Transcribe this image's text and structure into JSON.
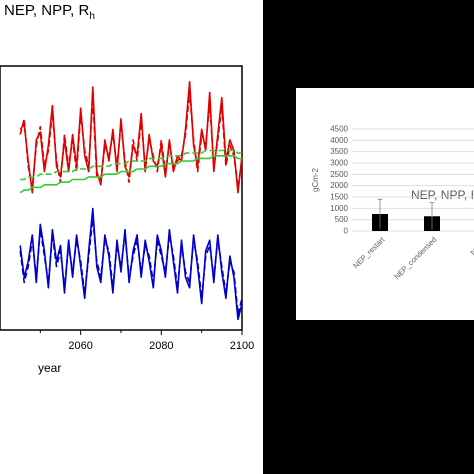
{
  "left_chart": {
    "title": "NEP, NPP, R",
    "title_sub": "h",
    "xlabel": "year",
    "x_ticks": [
      "2060",
      "2080",
      "2100"
    ]
  },
  "right_chart": {
    "title": "NEP, NPP, I",
    "ylabel": "gCm-2",
    "y_ticks": [
      "4500",
      "4000",
      "3500",
      "3000",
      "2500",
      "2000",
      "1500",
      "1000",
      "500",
      "0"
    ]
  },
  "chart_data": [
    {
      "type": "line",
      "title": "NEP, NPP, Rh",
      "xlabel": "year",
      "ylabel": "",
      "xlim": [
        2040,
        2100
      ],
      "ylim": [
        0,
        100
      ],
      "grid": false,
      "x": [
        2045,
        2046,
        2047,
        2048,
        2049,
        2050,
        2051,
        2052,
        2053,
        2054,
        2055,
        2056,
        2057,
        2058,
        2059,
        2060,
        2061,
        2062,
        2063,
        2064,
        2065,
        2066,
        2067,
        2068,
        2069,
        2070,
        2071,
        2072,
        2073,
        2074,
        2075,
        2076,
        2077,
        2078,
        2079,
        2080,
        2081,
        2082,
        2083,
        2084,
        2085,
        2086,
        2087,
        2088,
        2089,
        2090,
        2091,
        2092,
        2093,
        2094,
        2095,
        2096,
        2097,
        2098,
        2099,
        2100
      ],
      "series": [
        {
          "color": "#e00000",
          "style": "solid",
          "values": [
            76,
            78,
            64,
            52,
            72,
            75,
            60,
            70,
            85,
            62,
            58,
            72,
            60,
            74,
            62,
            84,
            66,
            60,
            92,
            60,
            55,
            72,
            64,
            76,
            60,
            80,
            62,
            58,
            70,
            66,
            82,
            60,
            74,
            64,
            62,
            70,
            58,
            72,
            60,
            66,
            64,
            76,
            94,
            70,
            62,
            76,
            68,
            90,
            60,
            74,
            88,
            64,
            72,
            68,
            52,
            66
          ]
        },
        {
          "color": "#e00000",
          "style": "dashed",
          "values": [
            74,
            80,
            62,
            54,
            70,
            77,
            62,
            68,
            82,
            64,
            56,
            74,
            62,
            72,
            60,
            82,
            68,
            62,
            88,
            58,
            57,
            70,
            66,
            74,
            62,
            78,
            64,
            56,
            72,
            64,
            80,
            62,
            72,
            66,
            60,
            72,
            60,
            70,
            62,
            64,
            66,
            74,
            90,
            72,
            60,
            74,
            70,
            86,
            62,
            72,
            85,
            62,
            70,
            66,
            54,
            64
          ]
        },
        {
          "color": "#33cc33",
          "style": "solid",
          "values": [
            52,
            53,
            53,
            54,
            54,
            54,
            55,
            55,
            55,
            55,
            56,
            56,
            56,
            57,
            57,
            57,
            57,
            58,
            58,
            58,
            58,
            59,
            59,
            59,
            59,
            60,
            60,
            60,
            60,
            61,
            61,
            61,
            62,
            62,
            62,
            62,
            63,
            63,
            63,
            63,
            64,
            64,
            64,
            64,
            65,
            65,
            65,
            65,
            66,
            66,
            66,
            66,
            66,
            66,
            65,
            65
          ]
        },
        {
          "color": "#33cc33",
          "style": "dashed",
          "values": [
            57,
            57,
            58,
            58,
            58,
            59,
            59,
            59,
            59,
            60,
            60,
            60,
            60,
            60,
            61,
            61,
            61,
            61,
            62,
            62,
            62,
            62,
            62,
            63,
            63,
            63,
            63,
            64,
            64,
            64,
            64,
            64,
            65,
            65,
            65,
            65,
            66,
            66,
            66,
            66,
            66,
            67,
            67,
            67,
            67,
            67,
            68,
            68,
            68,
            68,
            68,
            68,
            68,
            68,
            67,
            67
          ]
        },
        {
          "color": "#0000cc",
          "style": "solid",
          "values": [
            32,
            20,
            26,
            36,
            18,
            40,
            30,
            16,
            38,
            26,
            32,
            14,
            34,
            20,
            36,
            24,
            12,
            30,
            46,
            24,
            18,
            36,
            28,
            14,
            34,
            22,
            38,
            18,
            30,
            36,
            20,
            34,
            26,
            16,
            36,
            30,
            20,
            38,
            26,
            14,
            34,
            20,
            16,
            36,
            24,
            10,
            30,
            34,
            18,
            36,
            22,
            12,
            28,
            20,
            4,
            10
          ]
        },
        {
          "color": "#0000cc",
          "style": "dashed",
          "values": [
            30,
            18,
            24,
            34,
            20,
            38,
            28,
            18,
            36,
            24,
            30,
            16,
            32,
            22,
            34,
            26,
            14,
            28,
            42,
            26,
            20,
            34,
            30,
            16,
            32,
            24,
            36,
            20,
            28,
            34,
            22,
            32,
            28,
            18,
            34,
            28,
            22,
            36,
            28,
            16,
            32,
            22,
            18,
            34,
            26,
            12,
            28,
            32,
            20,
            34,
            24,
            14,
            26,
            22,
            6,
            12
          ]
        }
      ]
    },
    {
      "type": "bar",
      "title": "NEP, NPP, I",
      "ylabel": "gCm-2",
      "ylim": [
        0,
        4500
      ],
      "grid": true,
      "categories": [
        "NEP_restart",
        "NEP_condensed",
        "NPP_r"
      ],
      "values": [
        750,
        650,
        0
      ],
      "error": [
        650,
        600,
        0
      ],
      "color": "#000000"
    }
  ]
}
